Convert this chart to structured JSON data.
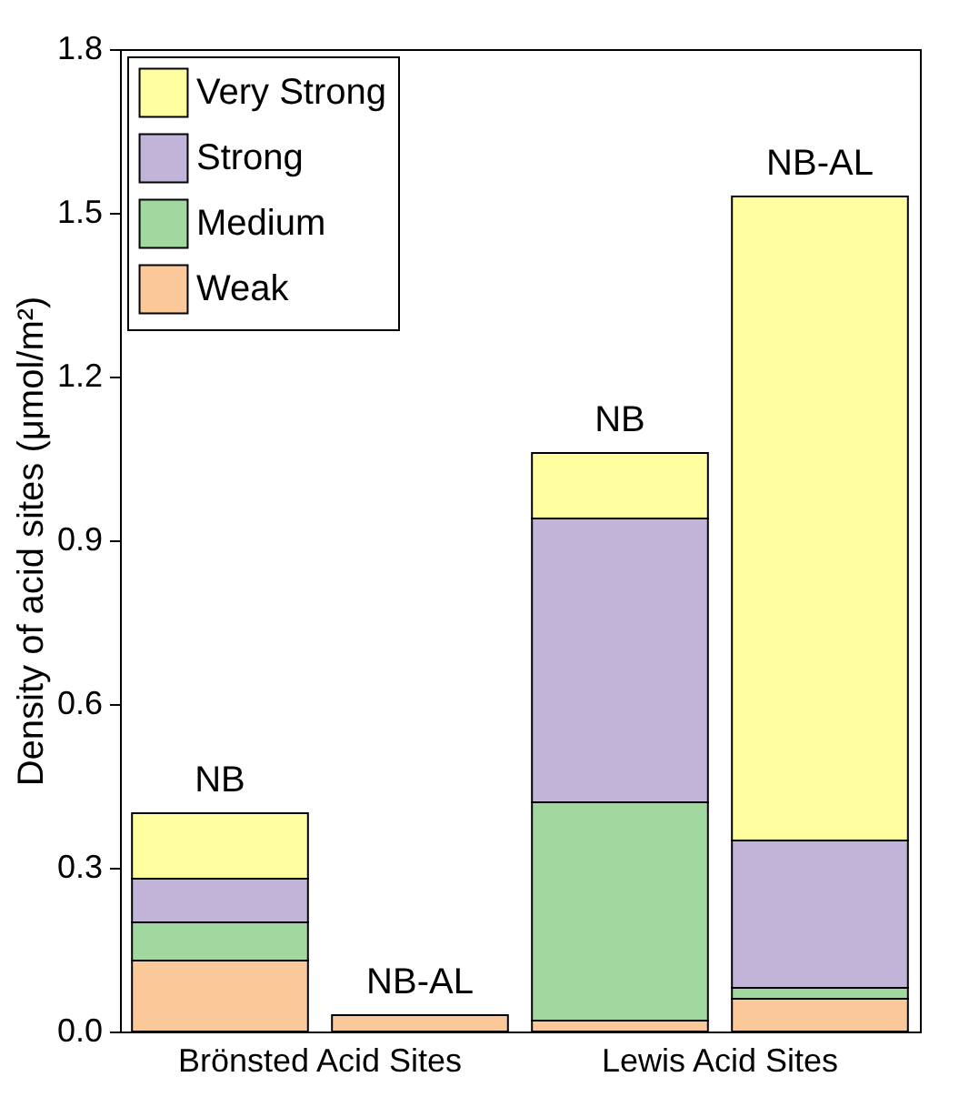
{
  "chart_data": {
    "type": "bar",
    "stacked": true,
    "ylabel": "Density of acid sites (μmol/m²)",
    "categories": [
      null,
      null,
      null,
      null
    ],
    "series": [
      {
        "name": "Weak",
        "color": "#fbc89a",
        "values": [
          0.13,
          0.03,
          0.02,
          0.06
        ]
      },
      {
        "name": "Medium",
        "color": "#a0d8a0",
        "values": [
          0.07,
          null,
          0.4,
          0.02
        ]
      },
      {
        "name": "Strong",
        "color": "#c2b4d8",
        "values": [
          0.08,
          null,
          0.52,
          0.27
        ]
      },
      {
        "name": "Very Strong",
        "color": "#ffffa0",
        "values": [
          0.12,
          null,
          0.12,
          1.18
        ]
      }
    ],
    "ylim": [
      0,
      1.8
    ],
    "yticks": [
      {
        "value": 0,
        "label": "0.0"
      },
      0.3,
      0.6,
      0.9,
      1.2,
      1.5,
      1.8
    ],
    "legend": "top left",
    "grid": false,
    "annotations": [
      {
        "text": "NB",
        "y": 0.4
      },
      {
        "text": "NB-AL",
        "y": 0.03
      },
      {
        "text": "NB",
        "y": 1.06
      },
      {
        "text": "NB-AL",
        "y": 1.53
      },
      "Brönsted Acid Sites",
      "Lewis Acid Sites"
    ]
  }
}
